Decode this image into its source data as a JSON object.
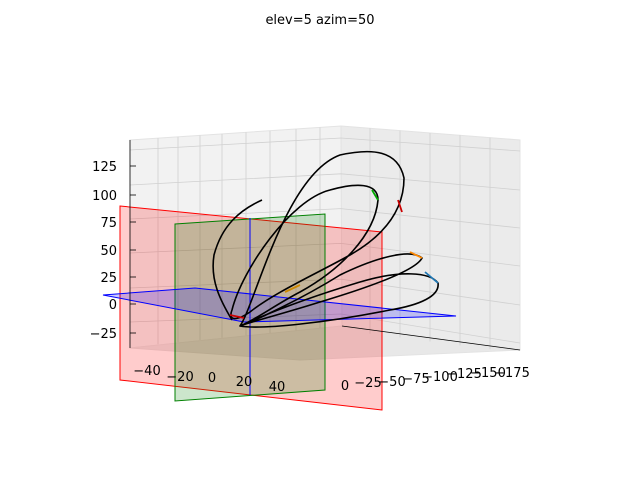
{
  "chart_data": {
    "type": "line",
    "projection": "3d",
    "title": "elev=5 azim=50",
    "xlabel": "",
    "ylabel": "",
    "zlabel": "",
    "x_ticks": [
      "−40",
      "−20",
      "0",
      "20",
      "40"
    ],
    "y_ticks": [
      "0",
      "−25",
      "−50",
      "−75",
      "−100",
      "−125",
      "−150",
      "−175"
    ],
    "z_ticks": [
      "−25",
      "0",
      "25",
      "50",
      "75",
      "100",
      "125"
    ],
    "xlim": [
      -55,
      55
    ],
    "ylim": [
      -185,
      5
    ],
    "zlim": [
      -40,
      145
    ],
    "grid": true,
    "planes": [
      {
        "name": "x=0",
        "color": "#ff0000",
        "alpha": 0.2
      },
      {
        "name": "y=0",
        "color": "#008000",
        "alpha": 0.2
      },
      {
        "name": "z=0",
        "color": "#0000ff",
        "alpha": 0.2
      }
    ],
    "curve": {
      "color": "#000000",
      "approx_points": [
        [
          0,
          0,
          0
        ],
        [
          20,
          -30,
          30
        ],
        [
          35,
          -70,
          80
        ],
        [
          30,
          -110,
          120
        ],
        [
          10,
          -150,
          130
        ],
        [
          -15,
          -175,
          110
        ],
        [
          -30,
          -170,
          60
        ],
        [
          -35,
          -130,
          20
        ],
        [
          -20,
          -70,
          -5
        ],
        [
          0,
          -20,
          -10
        ],
        [
          20,
          -40,
          20
        ],
        [
          30,
          -90,
          60
        ],
        [
          20,
          -140,
          90
        ],
        [
          -5,
          -165,
          70
        ],
        [
          -25,
          -150,
          30
        ],
        [
          -30,
          -100,
          0
        ],
        [
          -15,
          -40,
          -10
        ],
        [
          0,
          0,
          0
        ]
      ]
    }
  }
}
